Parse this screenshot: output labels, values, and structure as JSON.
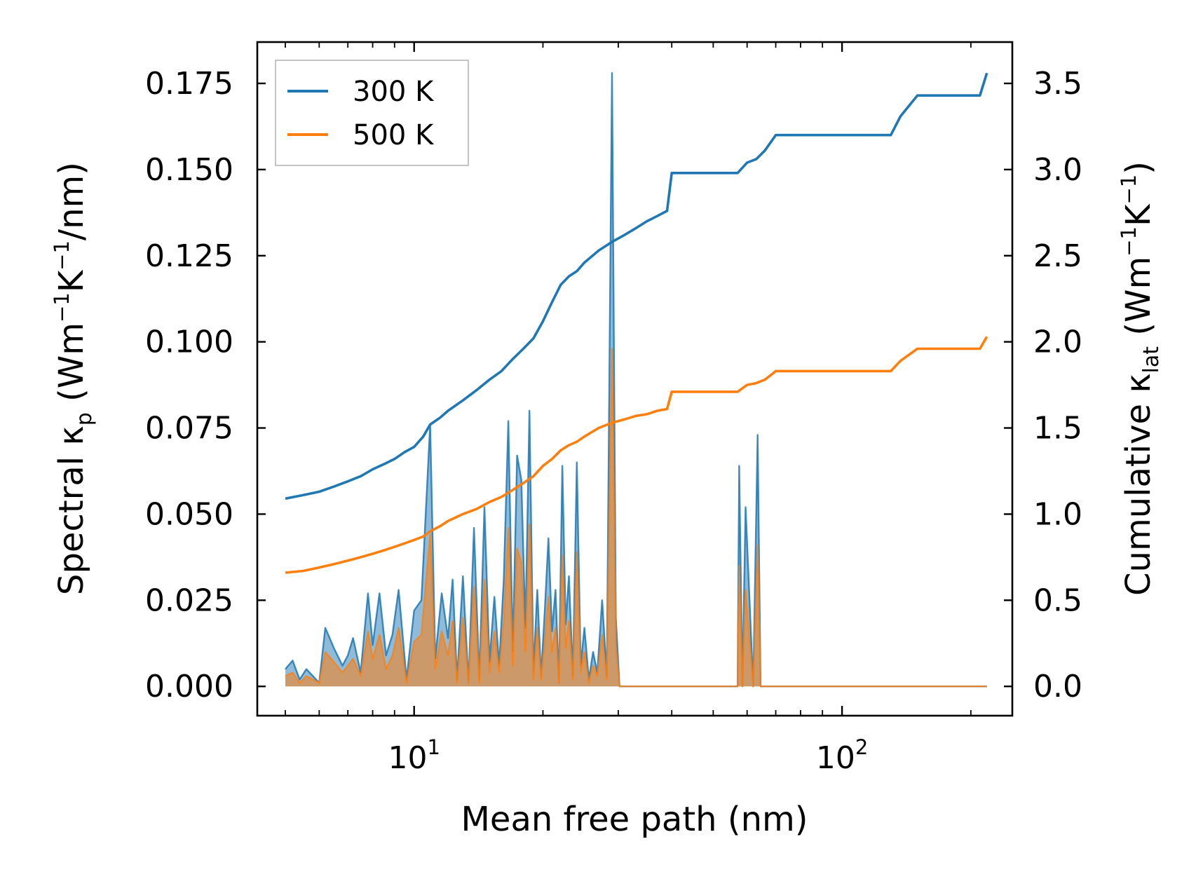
{
  "chart_data": {
    "type": "line",
    "title": "",
    "xlabel": "Mean free path (nm)",
    "xscale": "log",
    "xlim": [
      4.3,
      250
    ],
    "x_ticks": [
      {
        "value": 10,
        "base": "10",
        "exp": "1"
      },
      {
        "value": 100,
        "base": "10",
        "exp": "2"
      }
    ],
    "y_left": {
      "label": {
        "prefix": "Spectral κ",
        "sub": "p",
        "units_open": " (Wm",
        "exp1": "−1",
        "mid": "K",
        "exp2": "−1",
        "units_close": "/nm)"
      },
      "ylim": [
        -0.0085,
        0.187
      ],
      "ticks": [
        0,
        0.025,
        0.05,
        0.075,
        0.1,
        0.125,
        0.15,
        0.175
      ],
      "tick_labels": [
        "0.000",
        "0.025",
        "0.050",
        "0.075",
        "0.100",
        "0.125",
        "0.150",
        "0.175"
      ]
    },
    "y_right": {
      "label": {
        "prefix": "Cumulative κ",
        "sub": "lat",
        "units_open": " (Wm",
        "exp1": "−1",
        "mid": "K",
        "exp2": "−1",
        "units_close": ")"
      },
      "ylim": [
        -0.17,
        3.74
      ],
      "ticks": [
        0,
        0.5,
        1,
        1.5,
        2,
        2.5,
        3,
        3.5
      ],
      "tick_labels": [
        "0.0",
        "0.5",
        "1.0",
        "1.5",
        "2.0",
        "2.5",
        "3.0",
        "3.5"
      ]
    },
    "legend": {
      "position": "top-left",
      "entries": [
        "300 K",
        "500 K"
      ]
    },
    "colors": {
      "300 K": "#1f77b4",
      "500 K": "#ff7f0e"
    },
    "series": [
      {
        "name": "300 K",
        "axis": "right",
        "kind": "cumulative",
        "x": [
          5.0,
          5.5,
          6.0,
          6.5,
          7.0,
          7.5,
          8.0,
          8.5,
          9.0,
          9.5,
          10.0,
          10.5,
          10.9,
          11.5,
          12.0,
          13.0,
          14.0,
          15.0,
          16.0,
          17.0,
          18.0,
          19.0,
          20.0,
          21.0,
          22.0,
          23.0,
          24.0,
          25.0,
          27.0,
          29.0,
          31.0,
          33.0,
          35.0,
          37.0,
          39.0,
          40.0,
          42.0,
          50.0,
          57.0,
          60.0,
          63.0,
          66.0,
          70.0,
          80.0,
          100.0,
          130.0,
          137.0,
          150.0,
          170.0,
          210.0,
          218.0
        ],
        "y": [
          1.09,
          1.11,
          1.13,
          1.16,
          1.19,
          1.22,
          1.26,
          1.29,
          1.32,
          1.36,
          1.39,
          1.45,
          1.52,
          1.56,
          1.6,
          1.66,
          1.72,
          1.78,
          1.83,
          1.9,
          1.96,
          2.02,
          2.12,
          2.23,
          2.33,
          2.38,
          2.41,
          2.46,
          2.53,
          2.58,
          2.62,
          2.66,
          2.7,
          2.73,
          2.76,
          2.98,
          2.98,
          2.98,
          2.98,
          3.04,
          3.06,
          3.11,
          3.2,
          3.2,
          3.2,
          3.2,
          3.31,
          3.43,
          3.43,
          3.43,
          3.56
        ]
      },
      {
        "name": "500 K",
        "axis": "right",
        "kind": "cumulative",
        "x": [
          5.0,
          5.5,
          6.0,
          6.5,
          7.0,
          7.5,
          8.0,
          8.5,
          9.0,
          9.5,
          10.0,
          10.5,
          10.9,
          11.5,
          12.0,
          13.0,
          14.0,
          15.0,
          16.0,
          17.0,
          18.0,
          19.0,
          20.0,
          21.0,
          22.0,
          23.0,
          24.0,
          25.0,
          27.0,
          29.0,
          31.0,
          33.0,
          35.0,
          37.0,
          39.0,
          40.0,
          42.0,
          50.0,
          57.0,
          60.0,
          63.0,
          66.0,
          70.0,
          80.0,
          100.0,
          130.0,
          137.0,
          150.0,
          170.0,
          210.0,
          218.0
        ],
        "y": [
          0.66,
          0.67,
          0.69,
          0.71,
          0.73,
          0.75,
          0.77,
          0.79,
          0.81,
          0.83,
          0.85,
          0.87,
          0.9,
          0.93,
          0.96,
          1.0,
          1.03,
          1.07,
          1.1,
          1.14,
          1.18,
          1.22,
          1.28,
          1.32,
          1.37,
          1.4,
          1.42,
          1.45,
          1.5,
          1.53,
          1.55,
          1.57,
          1.58,
          1.6,
          1.61,
          1.71,
          1.71,
          1.71,
          1.71,
          1.75,
          1.76,
          1.78,
          1.83,
          1.83,
          1.83,
          1.83,
          1.89,
          1.96,
          1.96,
          1.96,
          2.03
        ]
      },
      {
        "name": "300 K spectral",
        "axis": "left",
        "kind": "spectral-filled",
        "x": [
          5.0,
          5.2,
          5.4,
          5.6,
          5.8,
          6.0,
          6.2,
          6.5,
          6.8,
          7.0,
          7.2,
          7.5,
          7.8,
          8.0,
          8.3,
          8.6,
          8.9,
          9.2,
          9.6,
          10.0,
          10.4,
          10.9,
          11.2,
          11.6,
          12.0,
          12.3,
          12.6,
          13.0,
          13.4,
          13.8,
          14.2,
          14.6,
          15.0,
          15.4,
          15.8,
          16.2,
          16.6,
          17.0,
          17.4,
          17.8,
          18.2,
          18.6,
          19.0,
          19.4,
          19.8,
          20.2,
          20.6,
          21.0,
          21.4,
          21.8,
          22.2,
          22.6,
          23.0,
          23.5,
          24.0,
          24.5,
          25.0,
          25.6,
          26.2,
          26.8,
          27.5,
          28.2,
          29.0,
          29.6,
          30.2,
          31.0,
          31.8,
          32.6,
          33.4,
          34.2,
          35.0,
          35.8,
          36.6,
          37.4,
          38.2,
          39.0,
          40.0,
          41.0,
          42.5,
          57.0,
          57.5,
          58.5,
          59.5,
          62.0,
          63.5,
          64.5,
          66.0,
          67.5,
          69.0,
          70.5,
          127.0,
          130.0,
          133.0,
          137.0,
          140.0,
          145.0,
          149.0,
          153.0,
          212.0,
          218.0
        ],
        "y": [
          0.005,
          0.0075,
          0.002,
          0.005,
          0.003,
          0.001,
          0.017,
          0.011,
          0.006,
          0.009,
          0.014,
          0.004,
          0.027,
          0.012,
          0.027,
          0.009,
          0.015,
          0.028,
          0.002,
          0.022,
          0.025,
          0.076,
          0.008,
          0.027,
          0.014,
          0.031,
          0.002,
          0.032,
          0.001,
          0.046,
          0.002,
          0.052,
          0.007,
          0.026,
          0.006,
          0.031,
          0.077,
          0.01,
          0.067,
          0.06,
          0.017,
          0.08,
          0.004,
          0.028,
          0.003,
          0.022,
          0.043,
          0.016,
          0.028,
          0.001,
          0.064,
          0.018,
          0.032,
          0.003,
          0.065,
          0.006,
          0.017,
          0.002,
          0.01,
          0.004,
          0.025,
          0.003,
          0.178,
          0.02,
          0.0,
          0.0,
          0.0,
          0.0,
          0.0,
          0.0,
          0.0,
          0.0,
          0.0,
          0.0,
          0.0,
          0.0,
          0.0,
          0.0,
          0.0,
          0.0,
          0.064,
          0.0,
          0.052,
          0.0,
          0.073,
          0.0,
          0.0,
          0.0,
          0.0,
          0.0,
          0.0,
          0.0,
          0.0,
          0.0,
          0.0,
          0.0,
          0.0,
          0.0,
          0.0,
          0.0
        ]
      },
      {
        "name": "500 K spectral",
        "axis": "left",
        "kind": "spectral-filled",
        "x": [
          5.0,
          5.2,
          5.4,
          5.6,
          5.8,
          6.0,
          6.2,
          6.5,
          6.8,
          7.0,
          7.2,
          7.5,
          7.8,
          8.0,
          8.3,
          8.6,
          8.9,
          9.2,
          9.6,
          10.0,
          10.4,
          10.9,
          11.2,
          11.6,
          12.0,
          12.3,
          12.6,
          13.0,
          13.4,
          13.8,
          14.2,
          14.6,
          15.0,
          15.4,
          15.8,
          16.2,
          16.6,
          17.0,
          17.4,
          17.8,
          18.2,
          18.6,
          19.0,
          19.4,
          19.8,
          20.2,
          20.6,
          21.0,
          21.4,
          21.8,
          22.2,
          22.6,
          23.0,
          23.5,
          24.0,
          24.5,
          25.0,
          25.6,
          26.2,
          26.8,
          27.5,
          28.2,
          29.0,
          29.6,
          30.2,
          31.0,
          31.8,
          32.6,
          33.4,
          34.2,
          35.0,
          35.8,
          36.6,
          37.4,
          38.2,
          39.0,
          40.0,
          41.0,
          42.5,
          57.0,
          57.5,
          58.5,
          59.5,
          62.0,
          63.5,
          64.5,
          66.0,
          67.5,
          69.0,
          70.5,
          127.0,
          130.0,
          133.0,
          137.0,
          140.0,
          145.0,
          149.0,
          153.0,
          212.0,
          218.0
        ],
        "y": [
          0.003,
          0.004,
          0.001,
          0.003,
          0.002,
          0.001,
          0.01,
          0.007,
          0.004,
          0.006,
          0.008,
          0.003,
          0.016,
          0.008,
          0.015,
          0.005,
          0.009,
          0.017,
          0.001,
          0.013,
          0.015,
          0.044,
          0.005,
          0.016,
          0.009,
          0.019,
          0.001,
          0.02,
          0.001,
          0.029,
          0.001,
          0.031,
          0.004,
          0.016,
          0.004,
          0.019,
          0.046,
          0.006,
          0.04,
          0.036,
          0.01,
          0.047,
          0.002,
          0.017,
          0.002,
          0.013,
          0.026,
          0.01,
          0.017,
          0.001,
          0.038,
          0.011,
          0.019,
          0.002,
          0.039,
          0.004,
          0.01,
          0.001,
          0.006,
          0.003,
          0.015,
          0.002,
          0.098,
          0.012,
          0.0,
          0.0,
          0.0,
          0.0,
          0.0,
          0.0,
          0.0,
          0.0,
          0.0,
          0.0,
          0.0,
          0.0,
          0.0,
          0.0,
          0.0,
          0.0,
          0.035,
          0.0,
          0.028,
          0.0,
          0.041,
          0.0,
          0.0,
          0.0,
          0.0,
          0.0,
          0.0,
          0.0,
          0.0,
          0.0,
          0.0,
          0.0,
          0.0,
          0.0,
          0.0,
          0.0
        ]
      }
    ]
  }
}
